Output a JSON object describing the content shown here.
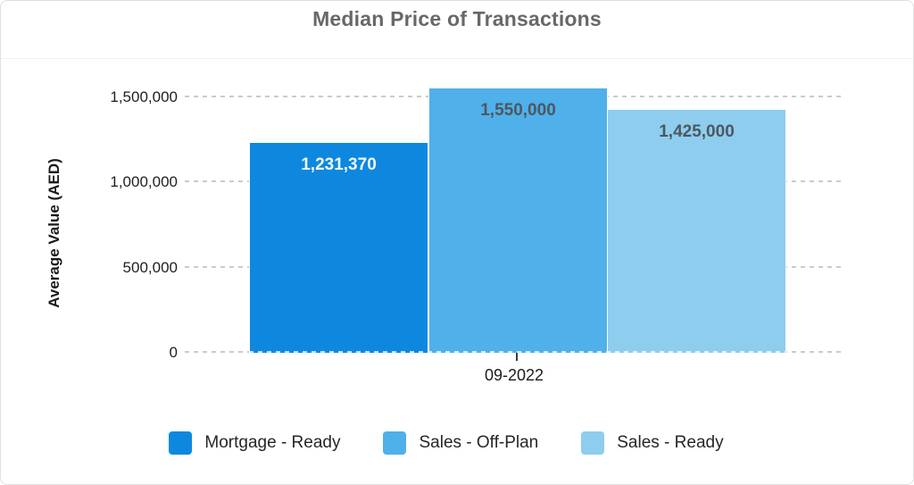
{
  "header": {
    "title": "Median Price of Transactions"
  },
  "chart_data": {
    "type": "bar",
    "title": "Median Price of Transactions",
    "xlabel": "",
    "ylabel": "Average Value (AED)",
    "categories": [
      "09-2022"
    ],
    "series": [
      {
        "name": "Mortgage - Ready",
        "value": 1231370,
        "label": "1,231,370",
        "color": "#0e88df",
        "label_color": "#f2f7fc"
      },
      {
        "name": "Sales - Off-Plan",
        "value": 1550000,
        "label": "1,550,000",
        "color": "#4fb0ea",
        "label_color": "#4d5760"
      },
      {
        "name": "Sales - Ready",
        "value": 1425000,
        "label": "1,425,000",
        "color": "#8ecdee",
        "label_color": "#4d5760"
      }
    ],
    "y_ticks": [
      {
        "value": 0,
        "label": "0"
      },
      {
        "value": 500000,
        "label": "500,000"
      },
      {
        "value": 1000000,
        "label": "1,000,000"
      },
      {
        "value": 1500000,
        "label": "1,500,000"
      }
    ],
    "ylim": [
      0,
      1625000
    ],
    "grid": "horizontal-dotted",
    "legend_position": "bottom"
  }
}
